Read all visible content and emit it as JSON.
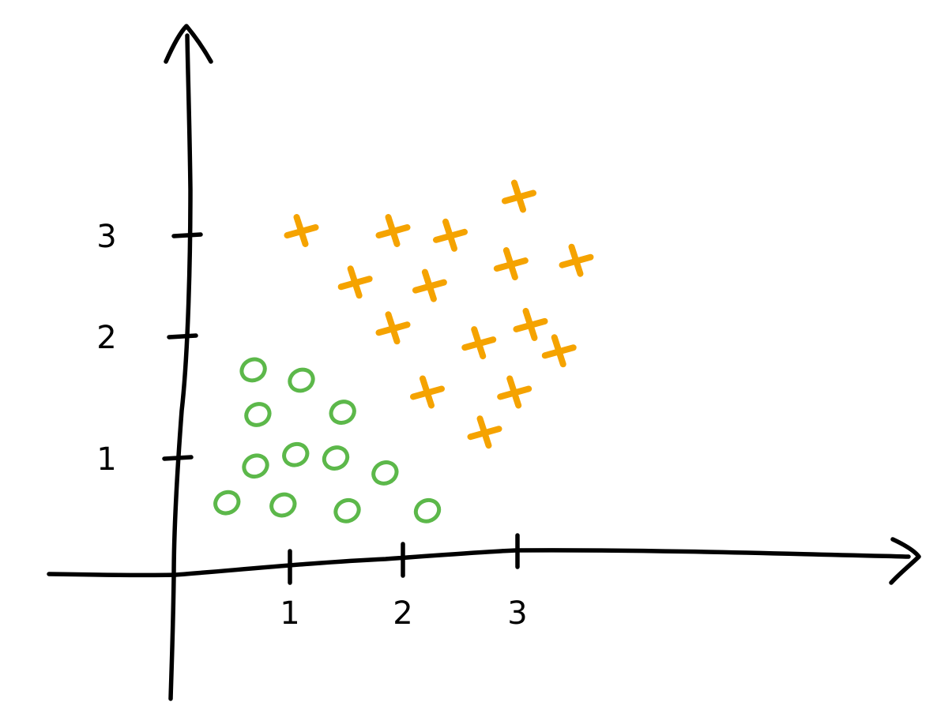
{
  "chart_data": {
    "type": "scatter",
    "title": "",
    "xlabel": "",
    "ylabel": "",
    "xlim": [
      -1.2,
      7.2
    ],
    "ylim": [
      -1.2,
      5.3
    ],
    "grid": false,
    "legend": "none",
    "x_ticks": [
      {
        "value": 1,
        "label": "1"
      },
      {
        "value": 2,
        "label": "2"
      },
      {
        "value": 3,
        "label": "3"
      }
    ],
    "y_ticks": [
      {
        "value": 1,
        "label": "1"
      },
      {
        "value": 2,
        "label": "2"
      },
      {
        "value": 3,
        "label": "3"
      }
    ],
    "series": [
      {
        "marker": "o",
        "color": "#5cb84a",
        "points": [
          [
            0.68,
            1.79
          ],
          [
            1.1,
            1.7
          ],
          [
            0.72,
            1.4
          ],
          [
            1.46,
            1.42
          ],
          [
            0.7,
            0.95
          ],
          [
            1.05,
            1.05
          ],
          [
            1.4,
            1.02
          ],
          [
            1.83,
            0.89
          ],
          [
            0.45,
            0.63
          ],
          [
            0.94,
            0.61
          ],
          [
            1.5,
            0.56
          ],
          [
            2.2,
            0.56
          ]
        ]
      },
      {
        "marker": "x",
        "color": "#f5a300",
        "points": [
          [
            3.0,
            3.3
          ],
          [
            1.1,
            3.0
          ],
          [
            1.9,
            3.0
          ],
          [
            2.4,
            2.96
          ],
          [
            3.5,
            2.74
          ],
          [
            2.93,
            2.71
          ],
          [
            1.57,
            2.55
          ],
          [
            2.22,
            2.52
          ],
          [
            3.1,
            2.18
          ],
          [
            1.9,
            2.15
          ],
          [
            2.65,
            2.02
          ],
          [
            3.35,
            1.95
          ],
          [
            2.2,
            1.59
          ],
          [
            2.96,
            1.59
          ],
          [
            2.7,
            1.24
          ]
        ]
      }
    ]
  }
}
